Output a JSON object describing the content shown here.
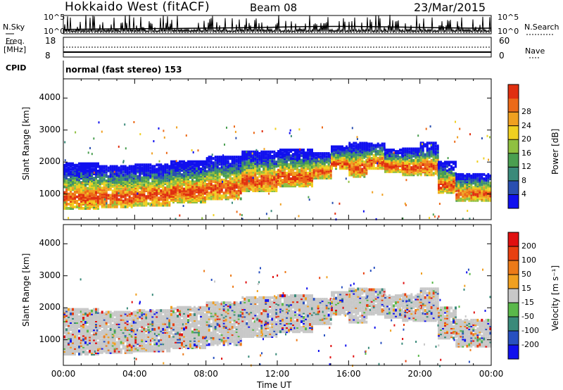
{
  "header": {
    "site": "Hokkaido West (fitACF)",
    "beam": "Beam 08",
    "date": "23/Mar/2015"
  },
  "noise_panel": {
    "left_label": "N.Sky",
    "right_label": "N.Search",
    "left_ticks": [
      "10^5",
      "10^0"
    ],
    "right_ticks": [
      "10^5",
      "10^0"
    ]
  },
  "freq_panel": {
    "left_label_1": "Freq.",
    "left_label_2": "[MHz]",
    "left_ticks": [
      "18",
      "8"
    ],
    "right_ticks": [
      "60",
      "0"
    ],
    "right_label": "Nave",
    "cpid_label": "CPID",
    "cpid_text": "normal (fast stereo) 153"
  },
  "chart_data": [
    {
      "type": "heatmap",
      "panel": "power",
      "ylabel": "Slant Range [km]",
      "y_ticks": [
        "1000",
        "2000",
        "3000",
        "4000"
      ],
      "ylim": [
        200,
        4600
      ],
      "xlim_hours": [
        0,
        24
      ],
      "colorbar": {
        "label": "Power [dB]",
        "ticks": [
          "4",
          "8",
          "12",
          "16",
          "20",
          "24",
          "28"
        ],
        "colors": [
          "#1010ee",
          "#2a4fb0",
          "#3a8a7a",
          "#4a9f50",
          "#8fc040",
          "#f0d020",
          "#f0a020",
          "#ec6a18",
          "#e03010"
        ]
      },
      "bands": [
        {
          "x0": 0,
          "x1": 2,
          "y0": 550,
          "y1": 1950
        },
        {
          "x0": 2,
          "x1": 4,
          "y0": 600,
          "y1": 1900
        },
        {
          "x0": 4,
          "x1": 6,
          "y0": 650,
          "y1": 1950
        },
        {
          "x0": 6,
          "x1": 8,
          "y0": 750,
          "y1": 2050
        },
        {
          "x0": 8,
          "x1": 10,
          "y0": 850,
          "y1": 2200
        },
        {
          "x0": 10,
          "x1": 12,
          "y0": 1100,
          "y1": 2350
        },
        {
          "x0": 12,
          "x1": 14,
          "y0": 1250,
          "y1": 2400
        },
        {
          "x0": 14,
          "x1": 15,
          "y0": 1500,
          "y1": 2300
        },
        {
          "x0": 15,
          "x1": 16,
          "y0": 1800,
          "y1": 2500
        },
        {
          "x0": 16,
          "x1": 17,
          "y0": 1550,
          "y1": 2600
        },
        {
          "x0": 17,
          "x1": 18,
          "y0": 1800,
          "y1": 2600
        },
        {
          "x0": 18,
          "x1": 19,
          "y0": 1700,
          "y1": 2400
        },
        {
          "x0": 19,
          "x1": 20,
          "y0": 1600,
          "y1": 2450
        },
        {
          "x0": 20,
          "x1": 21,
          "y0": 1600,
          "y1": 2600
        },
        {
          "x0": 21,
          "x1": 22,
          "y0": 1050,
          "y1": 2000
        },
        {
          "x0": 22,
          "x1": 24,
          "y0": 800,
          "y1": 1650
        }
      ]
    },
    {
      "type": "heatmap",
      "panel": "velocity",
      "ylabel": "Slant Range [km]",
      "xlabel": "Time UT",
      "y_ticks": [
        "1000",
        "2000",
        "3000",
        "4000"
      ],
      "ylim": [
        200,
        4600
      ],
      "x_ticks": [
        "00:00",
        "04:00",
        "08:00",
        "12:00",
        "16:00",
        "20:00",
        "00:00"
      ],
      "colorbar": {
        "label": "Velocity [m s⁻¹]",
        "ticks": [
          "200",
          "100",
          "50",
          "15",
          "-15",
          "-50",
          "-100",
          "-200"
        ],
        "colors": [
          "#1010ee",
          "#2850c0",
          "#3a8a7a",
          "#5ab84a",
          "#c8c8c8",
          "#f0a020",
          "#ec7a18",
          "#e84010",
          "#e01010"
        ]
      },
      "bands": [
        {
          "x0": 0,
          "x1": 2,
          "y0": 550,
          "y1": 1950
        },
        {
          "x0": 2,
          "x1": 4,
          "y0": 600,
          "y1": 1900
        },
        {
          "x0": 4,
          "x1": 6,
          "y0": 650,
          "y1": 1950
        },
        {
          "x0": 6,
          "x1": 8,
          "y0": 750,
          "y1": 2050
        },
        {
          "x0": 8,
          "x1": 10,
          "y0": 850,
          "y1": 2200
        },
        {
          "x0": 10,
          "x1": 12,
          "y0": 1100,
          "y1": 2350
        },
        {
          "x0": 12,
          "x1": 14,
          "y0": 1250,
          "y1": 2400
        },
        {
          "x0": 14,
          "x1": 15,
          "y0": 1500,
          "y1": 2300
        },
        {
          "x0": 15,
          "x1": 16,
          "y0": 1800,
          "y1": 2500
        },
        {
          "x0": 16,
          "x1": 17,
          "y0": 1550,
          "y1": 2600
        },
        {
          "x0": 17,
          "x1": 18,
          "y0": 1800,
          "y1": 2600
        },
        {
          "x0": 18,
          "x1": 19,
          "y0": 1700,
          "y1": 2400
        },
        {
          "x0": 19,
          "x1": 20,
          "y0": 1600,
          "y1": 2450
        },
        {
          "x0": 20,
          "x1": 21,
          "y0": 1600,
          "y1": 2600
        },
        {
          "x0": 21,
          "x1": 22,
          "y0": 1050,
          "y1": 2000
        },
        {
          "x0": 22,
          "x1": 24,
          "y0": 800,
          "y1": 1650
        }
      ]
    }
  ]
}
